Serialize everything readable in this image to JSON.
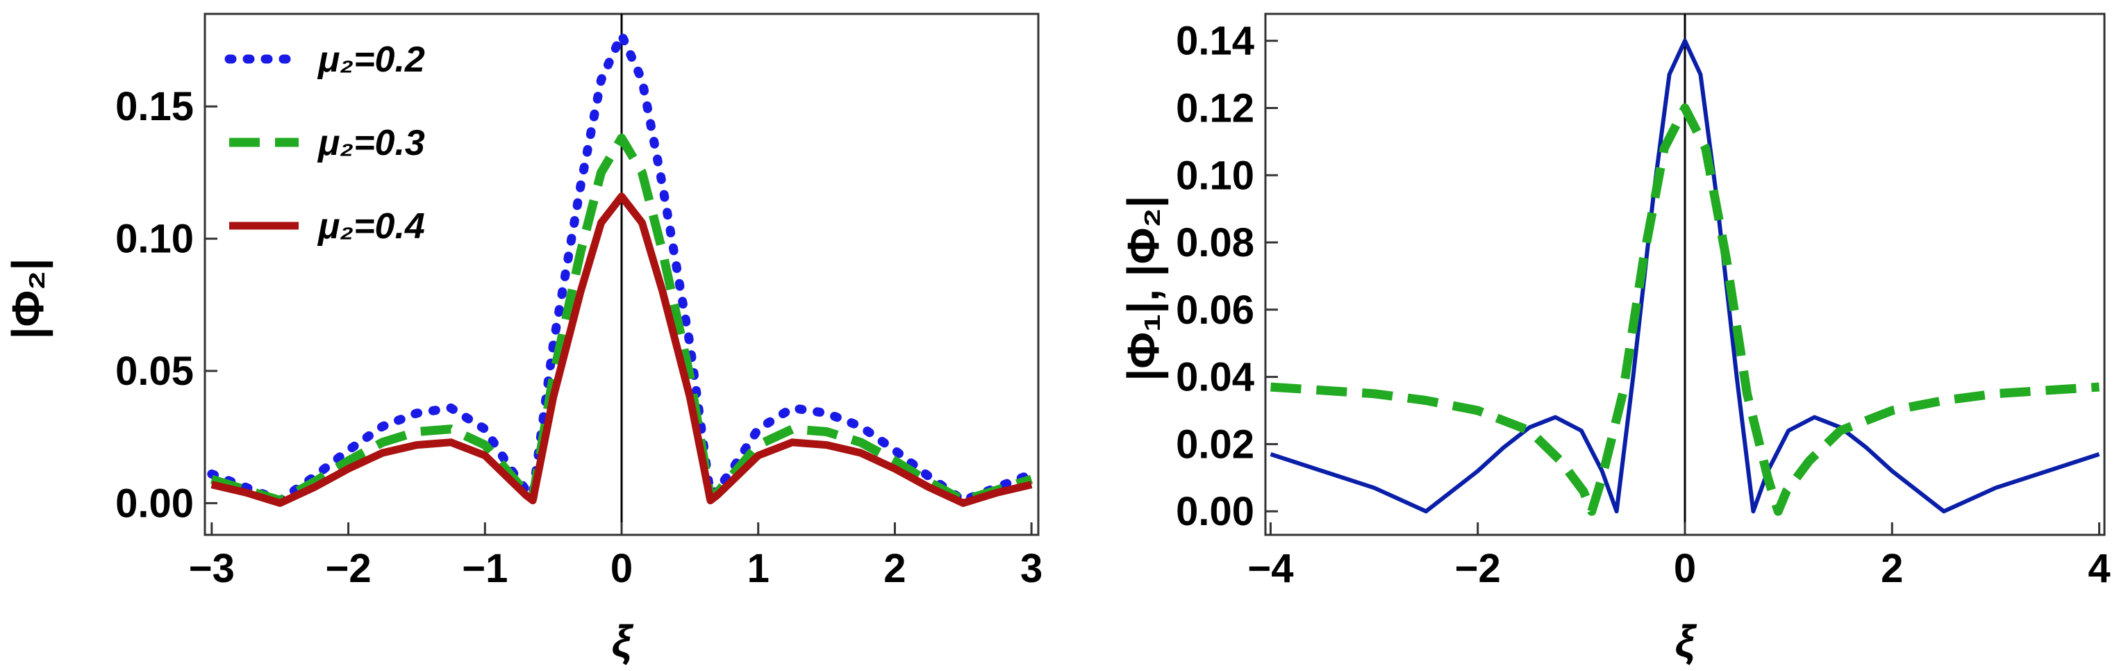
{
  "chart_data": [
    {
      "type": "line",
      "ylabel": "|Φ₂|",
      "xlabel": "ξ",
      "xlim": [
        -3.05,
        3.05
      ],
      "ylim": [
        -0.012,
        0.185
      ],
      "xticks": [
        -3,
        -2,
        -1,
        0,
        1,
        2,
        3
      ],
      "xtick_labels": [
        "−3",
        "−2",
        "−1",
        "0",
        "1",
        "2",
        "3"
      ],
      "yticks": [
        0,
        0.05,
        0.1,
        0.15
      ],
      "ytick_labels": [
        "0.00",
        "0.05",
        "0.10",
        "0.15"
      ],
      "vertical_line_at": 0,
      "legend_position": "top-left",
      "series": [
        {
          "name": "μ₂=0.2",
          "color": "#1a1ae6",
          "style": "dotted",
          "x": [
            -3,
            -2.75,
            -2.5,
            -2.25,
            -2,
            -1.75,
            -1.5,
            -1.25,
            -1,
            -0.8,
            -0.7,
            -0.65,
            -0.5,
            -0.3,
            -0.15,
            0,
            0.15,
            0.3,
            0.5,
            0.65,
            0.7,
            0.8,
            1,
            1.25,
            1.5,
            1.75,
            2,
            2.25,
            2.5,
            2.75,
            3
          ],
          "y": [
            0.011,
            0.006,
            0.001,
            0.01,
            0.02,
            0.029,
            0.034,
            0.036,
            0.028,
            0.012,
            0.005,
            0.003,
            0.06,
            0.12,
            0.16,
            0.177,
            0.16,
            0.12,
            0.06,
            0.003,
            0.005,
            0.012,
            0.028,
            0.036,
            0.034,
            0.029,
            0.02,
            0.01,
            0.001,
            0.006,
            0.011
          ]
        },
        {
          "name": "μ₂=0.3",
          "color": "#22aa22",
          "style": "dashed",
          "x": [
            -3,
            -2.75,
            -2.5,
            -2.25,
            -2,
            -1.75,
            -1.5,
            -1.25,
            -1,
            -0.8,
            -0.7,
            -0.65,
            -0.5,
            -0.3,
            -0.15,
            0,
            0.15,
            0.3,
            0.5,
            0.65,
            0.7,
            0.8,
            1,
            1.25,
            1.5,
            1.75,
            2,
            2.25,
            2.5,
            2.75,
            3
          ],
          "y": [
            0.009,
            0.005,
            0.001,
            0.008,
            0.016,
            0.023,
            0.027,
            0.028,
            0.022,
            0.01,
            0.004,
            0.002,
            0.048,
            0.095,
            0.125,
            0.138,
            0.125,
            0.095,
            0.048,
            0.002,
            0.004,
            0.01,
            0.022,
            0.028,
            0.027,
            0.023,
            0.016,
            0.008,
            0.001,
            0.005,
            0.009
          ]
        },
        {
          "name": "μ₂=0.4",
          "color": "#aa1111",
          "style": "solid",
          "x": [
            -3,
            -2.75,
            -2.5,
            -2.25,
            -2,
            -1.75,
            -1.5,
            -1.25,
            -1,
            -0.8,
            -0.7,
            -0.65,
            -0.5,
            -0.3,
            -0.15,
            0,
            0.15,
            0.3,
            0.5,
            0.65,
            0.7,
            0.8,
            1,
            1.25,
            1.5,
            1.75,
            2,
            2.25,
            2.5,
            2.75,
            3
          ],
          "y": [
            0.007,
            0.004,
            0.0,
            0.006,
            0.013,
            0.019,
            0.022,
            0.023,
            0.018,
            0.008,
            0.003,
            0.001,
            0.04,
            0.08,
            0.106,
            0.116,
            0.106,
            0.08,
            0.04,
            0.001,
            0.003,
            0.008,
            0.018,
            0.023,
            0.022,
            0.019,
            0.013,
            0.006,
            0.0,
            0.004,
            0.007
          ]
        }
      ]
    },
    {
      "type": "line",
      "ylabel": "|Φ₁|, |Φ₂|",
      "xlabel": "ξ",
      "xlim": [
        -4.05,
        4.05
      ],
      "ylim": [
        -0.007,
        0.148
      ],
      "xticks": [
        -4,
        -2,
        0,
        2,
        4
      ],
      "xtick_labels": [
        "−4",
        "−2",
        "0",
        "2",
        "4"
      ],
      "yticks": [
        0,
        0.02,
        0.04,
        0.06,
        0.08,
        0.1,
        0.12,
        0.14
      ],
      "ytick_labels": [
        "0.00",
        "0.02",
        "0.04",
        "0.06",
        "0.08",
        "0.10",
        "0.12",
        "0.14"
      ],
      "vertical_line_at": 0,
      "series": [
        {
          "color": "#0a1fa8",
          "style": "solid",
          "x": [
            -4,
            -3.5,
            -3,
            -2.5,
            -2,
            -1.75,
            -1.5,
            -1.25,
            -1,
            -0.8,
            -0.66,
            -0.5,
            -0.3,
            -0.15,
            0,
            0.15,
            0.3,
            0.5,
            0.66,
            0.8,
            1,
            1.25,
            1.5,
            1.75,
            2,
            2.5,
            3,
            3.5,
            4
          ],
          "y": [
            0.017,
            0.012,
            0.007,
            0.0,
            0.012,
            0.019,
            0.025,
            0.028,
            0.024,
            0.012,
            0.0,
            0.04,
            0.095,
            0.13,
            0.14,
            0.13,
            0.095,
            0.04,
            0.0,
            0.012,
            0.024,
            0.028,
            0.025,
            0.019,
            0.012,
            0.0,
            0.007,
            0.012,
            0.017
          ]
        },
        {
          "color": "#22aa22",
          "style": "dashed",
          "x": [
            -4,
            -3.5,
            -3,
            -2.5,
            -2,
            -1.5,
            -1.2,
            -0.98,
            -0.9,
            -0.8,
            -0.6,
            -0.4,
            -0.2,
            0,
            0.2,
            0.4,
            0.6,
            0.8,
            0.9,
            0.98,
            1.2,
            1.5,
            2,
            2.5,
            3,
            3.5,
            4
          ],
          "y": [
            0.037,
            0.036,
            0.035,
            0.033,
            0.03,
            0.024,
            0.015,
            0.006,
            0.0,
            0.01,
            0.035,
            0.075,
            0.108,
            0.12,
            0.108,
            0.075,
            0.035,
            0.01,
            0.0,
            0.006,
            0.015,
            0.024,
            0.03,
            0.033,
            0.035,
            0.036,
            0.037
          ]
        }
      ]
    }
  ]
}
